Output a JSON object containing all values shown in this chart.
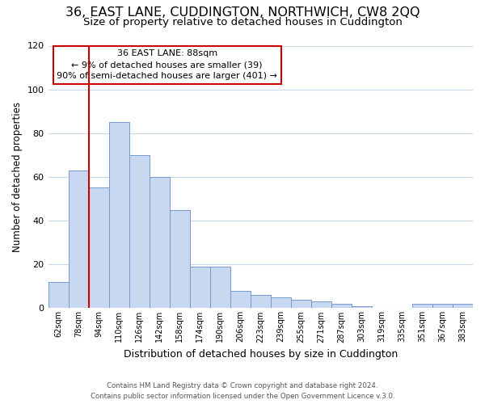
{
  "title1": "36, EAST LANE, CUDDINGTON, NORTHWICH, CW8 2QQ",
  "title2": "Size of property relative to detached houses in Cuddington",
  "xlabel": "Distribution of detached houses by size in Cuddington",
  "ylabel": "Number of detached properties",
  "bar_labels": [
    "62sqm",
    "78sqm",
    "94sqm",
    "110sqm",
    "126sqm",
    "142sqm",
    "158sqm",
    "174sqm",
    "190sqm",
    "206sqm",
    "223sqm",
    "239sqm",
    "255sqm",
    "271sqm",
    "287sqm",
    "303sqm",
    "319sqm",
    "335sqm",
    "351sqm",
    "367sqm",
    "383sqm"
  ],
  "bar_values": [
    12,
    63,
    55,
    85,
    70,
    60,
    45,
    19,
    19,
    8,
    6,
    5,
    4,
    3,
    2,
    1,
    0,
    0,
    2,
    2,
    2
  ],
  "bar_color": "#c8d8f0",
  "bar_edge_color": "#7799cc",
  "vline_color": "#cc0000",
  "annotation_title": "36 EAST LANE: 88sqm",
  "annotation_line1": "← 9% of detached houses are smaller (39)",
  "annotation_line2": "90% of semi-detached houses are larger (401) →",
  "annotation_box_color": "#ffffff",
  "annotation_box_edge": "#cc0000",
  "ylim": [
    0,
    120
  ],
  "footer1": "Contains HM Land Registry data © Crown copyright and database right 2024.",
  "footer2": "Contains public sector information licensed under the Open Government Licence v.3.0.",
  "background_color": "#ffffff",
  "grid_color": "#c8d8e8",
  "title1_fontsize": 11.5,
  "title2_fontsize": 9.5,
  "xlabel_fontsize": 9,
  "ylabel_fontsize": 8.5
}
